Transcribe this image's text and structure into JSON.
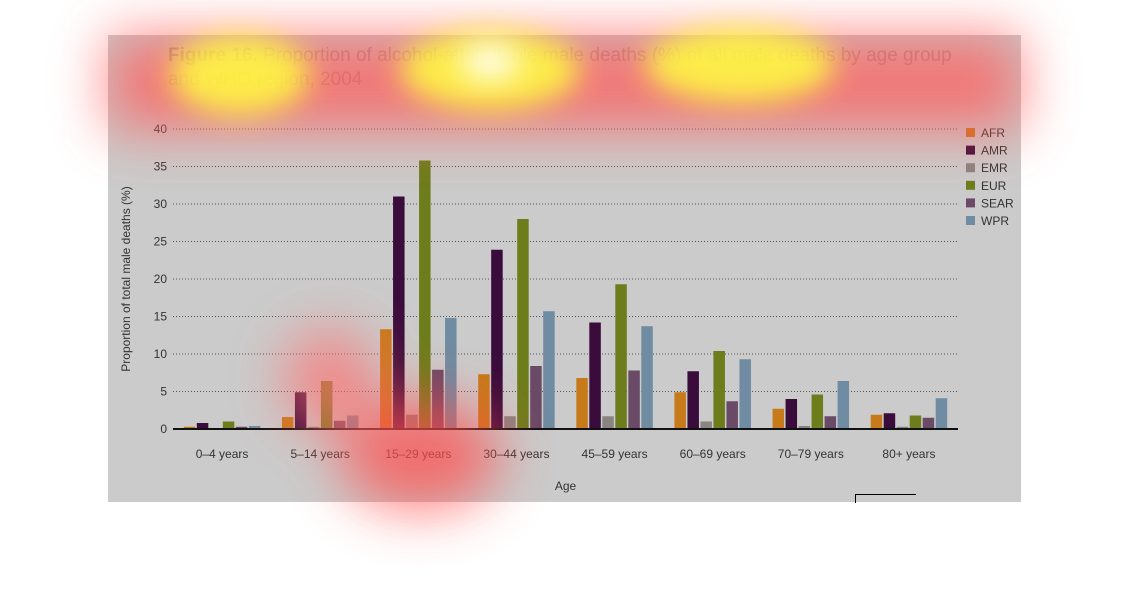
{
  "figure": {
    "label": "Figure 16.",
    "title_text": "Proportion of alcohol-attributable male deaths (%) of all male deaths by age group and WHO region, 2004"
  },
  "chart_data": {
    "type": "bar",
    "title": "Figure 16. Proportion of alcohol-attributable male deaths (%) of all male deaths by age group and WHO region, 2004",
    "xlabel": "Age",
    "ylabel": "Proportion of total male deaths (%)",
    "ylim": [
      0,
      40
    ],
    "yticks": [
      0,
      5,
      10,
      15,
      20,
      25,
      30,
      35,
      40
    ],
    "grid": "horizontal dotted",
    "legend_position": "right",
    "categories": [
      "0–4 years",
      "5–14 years",
      "15–29 years",
      "30–44 years",
      "45–59 years",
      "60–69 years",
      "70–79 years",
      "80+ years"
    ],
    "series": [
      {
        "name": "AFR",
        "color": "#c67a1a",
        "values": [
          0.3,
          1.6,
          13.3,
          7.3,
          6.8,
          4.9,
          2.7,
          1.9
        ]
      },
      {
        "name": "AMR",
        "color": "#3a0c3c",
        "values": [
          0.8,
          4.9,
          31.0,
          23.9,
          14.2,
          7.7,
          4.0,
          2.1
        ]
      },
      {
        "name": "EMR",
        "color": "#8a8480",
        "values": [
          0.1,
          0.3,
          1.9,
          1.7,
          1.7,
          1.0,
          0.4,
          0.3
        ]
      },
      {
        "name": "EUR",
        "color": "#6d7d1c",
        "values": [
          1.0,
          6.4,
          35.8,
          28.0,
          19.3,
          10.4,
          4.6,
          1.8
        ]
      },
      {
        "name": "SEAR",
        "color": "#6a4a66",
        "values": [
          0.3,
          1.1,
          7.9,
          8.4,
          7.8,
          3.7,
          1.7,
          1.5
        ]
      },
      {
        "name": "WPR",
        "color": "#6f8ca2",
        "values": [
          0.4,
          1.8,
          14.8,
          15.7,
          13.7,
          9.3,
          6.4,
          4.1
        ]
      }
    ]
  }
}
